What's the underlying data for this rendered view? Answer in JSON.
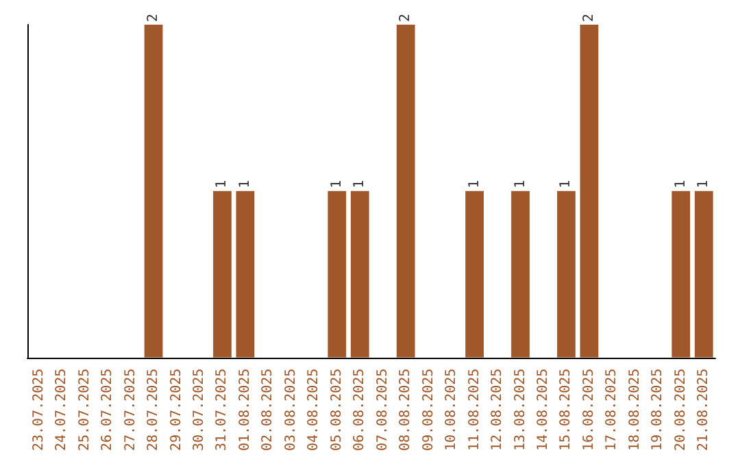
{
  "chart_data": {
    "type": "bar",
    "categories": [
      "23.07.2025",
      "24.07.2025",
      "25.07.2025",
      "26.07.2025",
      "27.07.2025",
      "28.07.2025",
      "29.07.2025",
      "30.07.2025",
      "31.07.2025",
      "01.08.2025",
      "02.08.2025",
      "03.08.2025",
      "04.08.2025",
      "05.08.2025",
      "06.08.2025",
      "07.08.2025",
      "08.08.2025",
      "09.08.2025",
      "10.08.2025",
      "11.08.2025",
      "12.08.2025",
      "13.08.2025",
      "14.08.2025",
      "15.08.2025",
      "16.08.2025",
      "17.08.2025",
      "18.08.2025",
      "19.08.2025",
      "20.08.2025",
      "21.08.2025"
    ],
    "values": [
      0,
      0,
      0,
      0,
      0,
      2,
      0,
      0,
      1,
      1,
      0,
      0,
      0,
      1,
      1,
      0,
      2,
      0,
      0,
      1,
      0,
      1,
      0,
      1,
      2,
      0,
      0,
      0,
      1,
      1
    ],
    "value_labels": [
      null,
      null,
      null,
      null,
      null,
      "2",
      null,
      null,
      "1",
      "1",
      null,
      null,
      null,
      "1",
      "1",
      null,
      "2",
      null,
      null,
      "1",
      null,
      "1",
      null,
      "1",
      "2",
      null,
      null,
      null,
      "1",
      "1"
    ],
    "color": "#a0582a",
    "tick_labels": "x"
  }
}
